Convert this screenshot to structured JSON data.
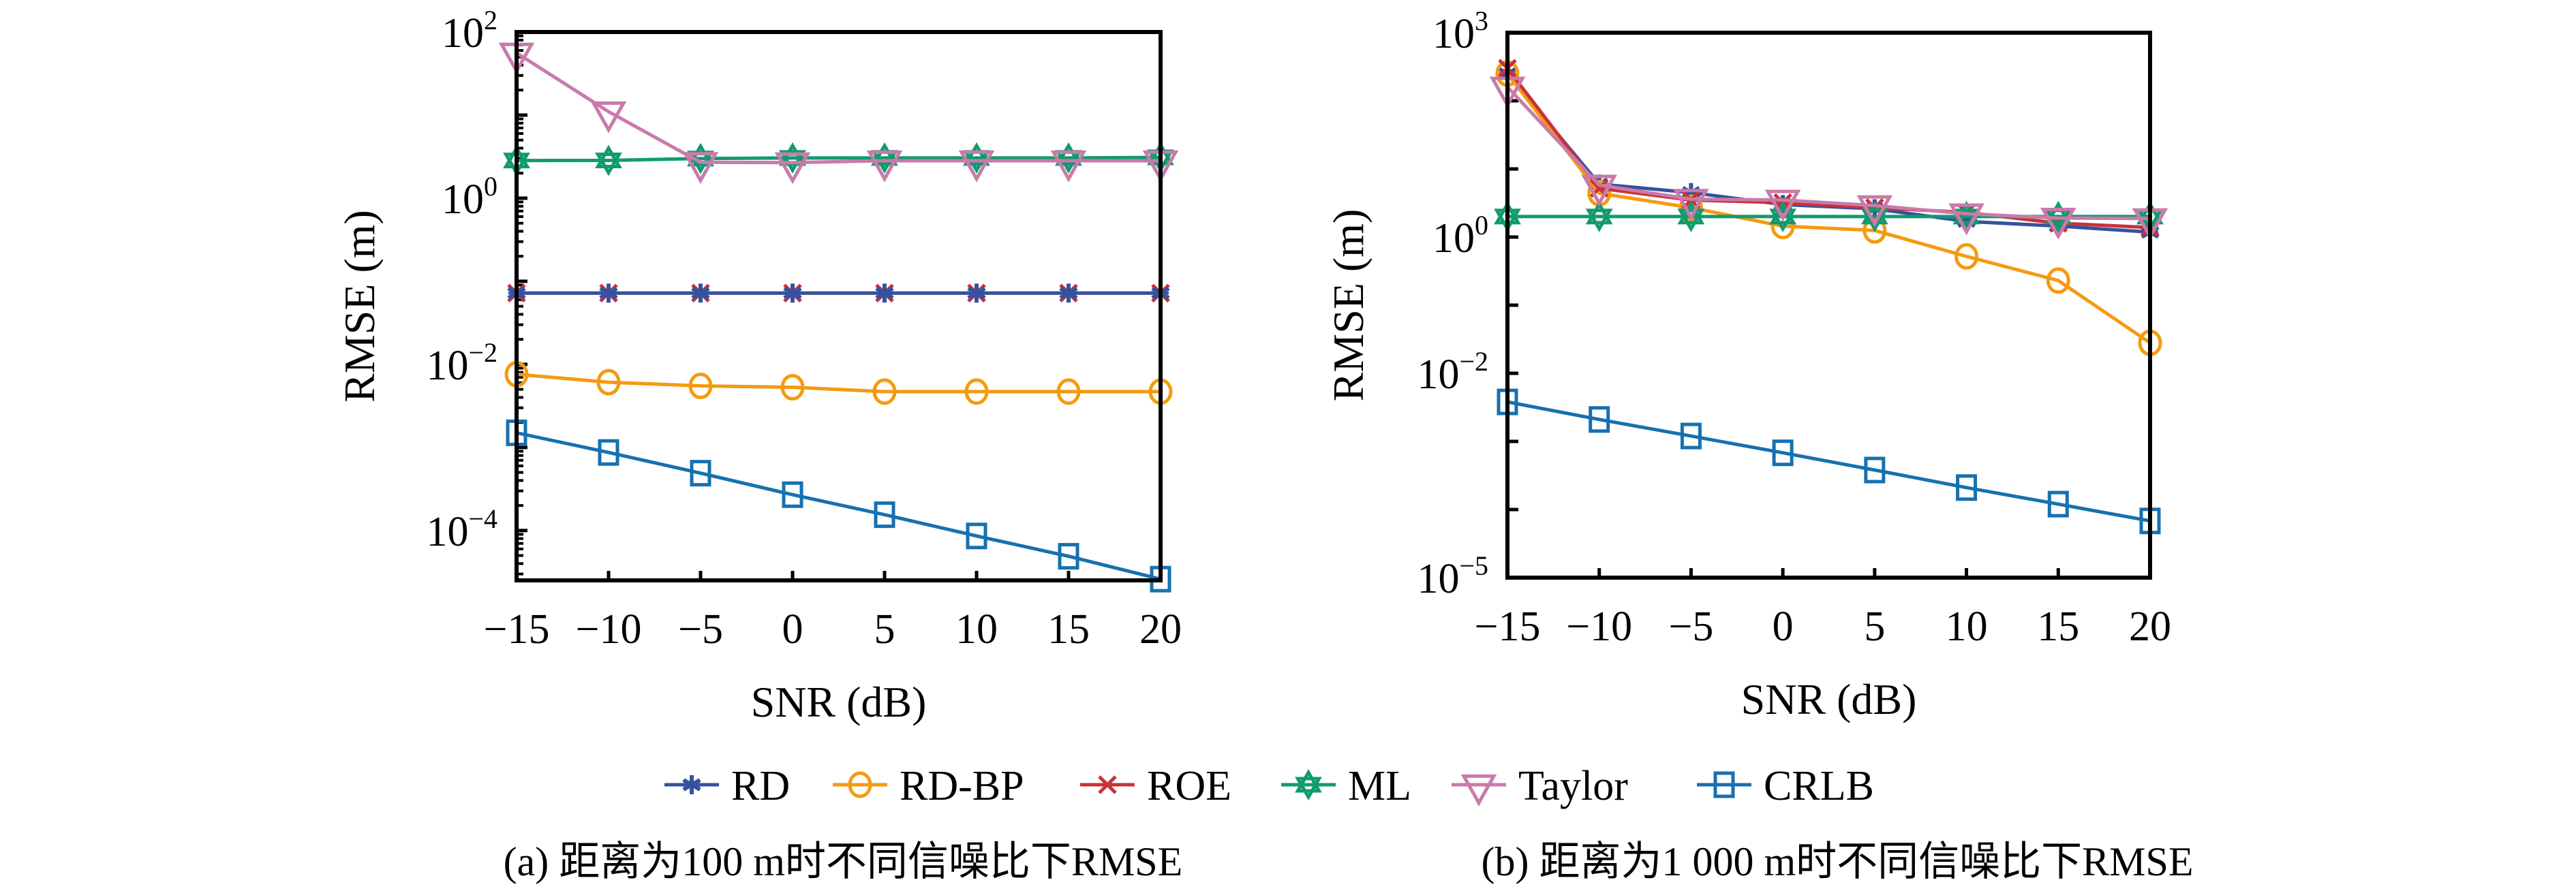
{
  "chart_data": [
    {
      "type": "line",
      "id": "a",
      "caption": "(a) 距离为100 m时不同信噪比下RMSE",
      "xlabel": "SNR (dB)",
      "ylabel": "RMSE (m)",
      "yscale": "log",
      "x": [
        -15,
        -10,
        -5,
        0,
        5,
        10,
        15,
        20
      ],
      "xticks": [
        "−15",
        "−10",
        "−5",
        "0",
        "5",
        "10",
        "15",
        "20"
      ],
      "xlim": [
        -15,
        20
      ],
      "ylim_log10": [
        -4.6,
        2
      ],
      "yticks": [
        {
          "base": "10",
          "exp": "2",
          "log": 2
        },
        {
          "base": "10",
          "exp": "0",
          "log": 0
        },
        {
          "base": "10",
          "exp": "−2",
          "log": -2
        },
        {
          "base": "10",
          "exp": "−4",
          "log": -4
        }
      ],
      "grid": false,
      "series": [
        {
          "name": "ROE",
          "values": [
            0.072,
            0.072,
            0.072,
            0.072,
            0.072,
            0.072,
            0.072,
            0.072
          ]
        },
        {
          "name": "RD",
          "values": [
            0.072,
            0.072,
            0.072,
            0.072,
            0.072,
            0.072,
            0.072,
            0.072
          ]
        },
        {
          "name": "RD-BP",
          "values": [
            0.0076,
            0.0061,
            0.0055,
            0.0053,
            0.0047,
            0.0047,
            0.0047,
            0.0047
          ]
        },
        {
          "name": "ML",
          "values": [
            2.84,
            2.85,
            3.0,
            3.05,
            3.05,
            3.05,
            3.05,
            3.1
          ]
        },
        {
          "name": "Taylor",
          "values": [
            56,
            11,
            2.7,
            2.68,
            2.82,
            2.82,
            2.82,
            2.82
          ]
        },
        {
          "name": "CRLB",
          "values": [
            0.0015,
            0.00087,
            0.00049,
            0.00027,
            0.000155,
            8.6e-05,
            4.9e-05,
            2.6e-05
          ]
        }
      ]
    },
    {
      "type": "line",
      "id": "b",
      "caption": "(b) 距离为1 000 m时不同信噪比下RMSE",
      "xlabel": "SNR (dB)",
      "ylabel": "RMSE (m)",
      "yscale": "log",
      "x": [
        -15,
        -10,
        -5,
        0,
        5,
        10,
        15,
        20
      ],
      "xticks": [
        "−15",
        "−10",
        "−5",
        "0",
        "5",
        "10",
        "15",
        "20"
      ],
      "xlim": [
        -15,
        20
      ],
      "ylim_log10": [
        -5,
        3
      ],
      "yticks": [
        {
          "base": "10",
          "exp": "3",
          "log": 3
        },
        {
          "base": "10",
          "exp": "0",
          "log": 0
        },
        {
          "base": "10",
          "exp": "−2",
          "log": -2
        },
        {
          "base": "10",
          "exp": "−5",
          "log": -5
        }
      ],
      "grid": false,
      "series": [
        {
          "name": "RD",
          "values": [
            250,
            6.0,
            4.5,
            3.0,
            2.6,
            1.7,
            1.45,
            1.18
          ]
        },
        {
          "name": "RD-BP",
          "values": [
            251,
            4.4,
            2.7,
            1.45,
            1.25,
            0.52,
            0.23,
            0.028
          ]
        },
        {
          "name": "ROE",
          "values": [
            300,
            5.2,
            3.5,
            3.2,
            2.7,
            2.3,
            1.6,
            1.38
          ]
        },
        {
          "name": "ML",
          "values": [
            2.0,
            2.0,
            2.0,
            2.0,
            2.0,
            2.0,
            2.0,
            2.0
          ]
        },
        {
          "name": "Taylor",
          "values": [
            160,
            5.8,
            3.6,
            3.5,
            2.9,
            2.2,
            1.9,
            1.87
          ]
        },
        {
          "name": "CRLB",
          "values": [
            0.0038,
            0.0021,
            0.0012,
            0.00068,
            0.00038,
            0.00021,
            0.00012,
            6.8e-05
          ]
        }
      ]
    }
  ],
  "legend": {
    "placement": "bottom-center",
    "entries": [
      {
        "name": "RD",
        "marker": "asterisk-icon",
        "color": "#35529e"
      },
      {
        "name": "RD-BP",
        "marker": "circle-icon",
        "color": "#f59a0f"
      },
      {
        "name": "ROE",
        "marker": "x-cross-icon",
        "color": "#c8323a"
      },
      {
        "name": "ML",
        "marker": "hexagram-icon",
        "color": "#109b6e"
      },
      {
        "name": "Taylor",
        "marker": "down-triangle-icon",
        "color": "#c97aab"
      },
      {
        "name": "CRLB",
        "marker": "square-icon",
        "color": "#1671b0"
      }
    ]
  }
}
